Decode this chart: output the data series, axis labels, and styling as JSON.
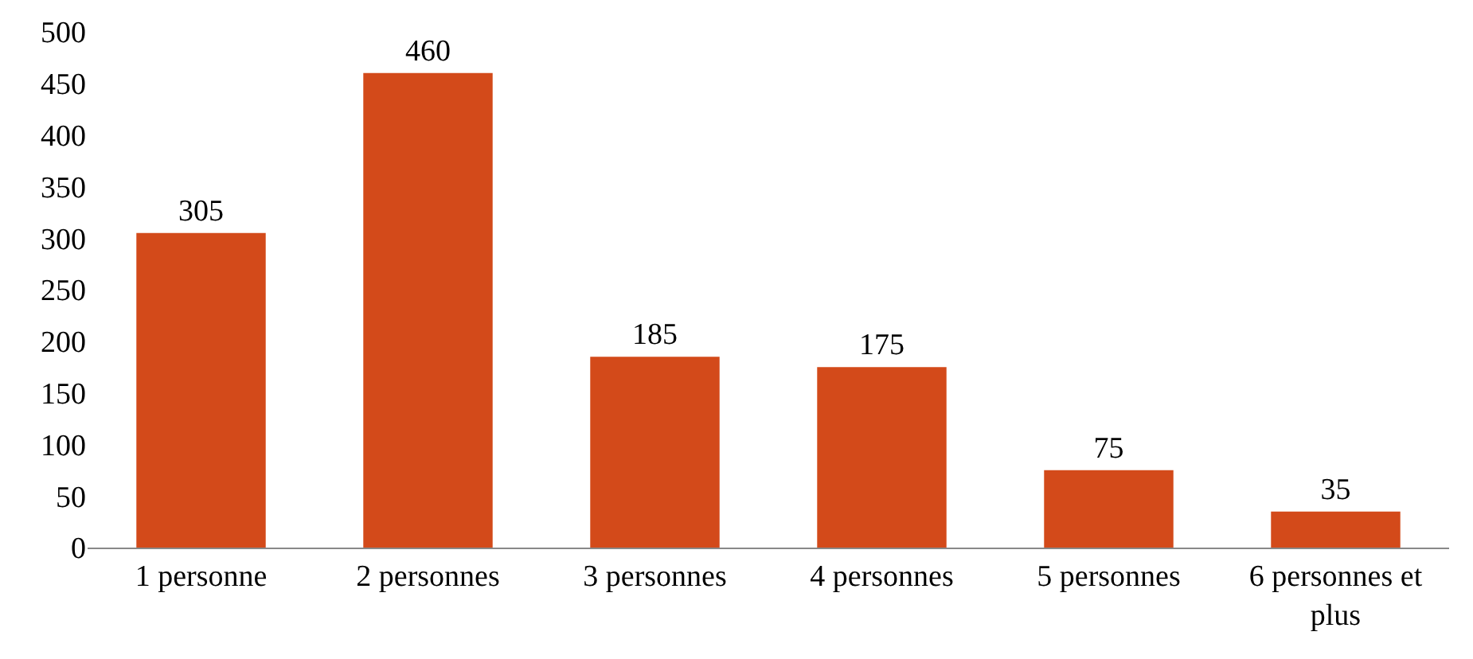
{
  "chart_data": {
    "type": "bar",
    "categories": [
      "1 personne",
      "2 personnes",
      "3 personnes",
      "4 personnes",
      "5 personnes",
      "6 personnes et plus"
    ],
    "values": [
      305,
      460,
      185,
      175,
      75,
      35
    ],
    "color": "#d34a1a",
    "ylim": [
      0,
      500
    ],
    "yticks": [
      0,
      50,
      100,
      150,
      200,
      250,
      300,
      350,
      400,
      450,
      500
    ],
    "data_labels": true
  }
}
